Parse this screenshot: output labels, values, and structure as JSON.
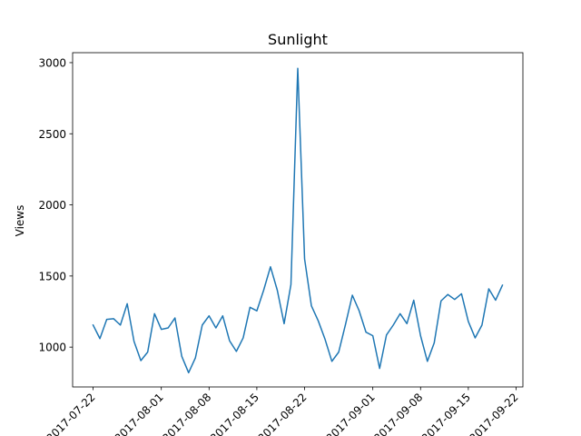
{
  "chart_data": {
    "type": "line",
    "title": "Sunlight",
    "xlabel": "",
    "ylabel": "Views",
    "grid": false,
    "legend": "none",
    "color": "#1f77b4",
    "xlim": [
      "2017-07-19",
      "2017-09-23"
    ],
    "ylim": [
      720,
      3070
    ],
    "x_ticks": [
      {
        "date": "2017-07-22",
        "label": "2017-07-22"
      },
      {
        "date": "2017-08-01",
        "label": "2017-08-01"
      },
      {
        "date": "2017-08-08",
        "label": "2017-08-08"
      },
      {
        "date": "2017-08-15",
        "label": "2017-08-15"
      },
      {
        "date": "2017-08-22",
        "label": "2017-08-22"
      },
      {
        "date": "2017-09-01",
        "label": "2017-09-01"
      },
      {
        "date": "2017-09-08",
        "label": "2017-09-08"
      },
      {
        "date": "2017-09-15",
        "label": "2017-09-15"
      },
      {
        "date": "2017-09-22",
        "label": "2017-09-22"
      }
    ],
    "y_ticks": [
      {
        "value": 1000,
        "label": "1000"
      },
      {
        "value": 1500,
        "label": "1500"
      },
      {
        "value": 2000,
        "label": "2000"
      },
      {
        "value": 2500,
        "label": "2500"
      },
      {
        "value": 3000,
        "label": "3000"
      }
    ],
    "series": [
      {
        "x": [
          "2017-07-22",
          "2017-07-23",
          "2017-07-24",
          "2017-07-25",
          "2017-07-26",
          "2017-07-27",
          "2017-07-28",
          "2017-07-29",
          "2017-07-30",
          "2017-07-31",
          "2017-08-01",
          "2017-08-02",
          "2017-08-03",
          "2017-08-04",
          "2017-08-05",
          "2017-08-06",
          "2017-08-07",
          "2017-08-08",
          "2017-08-09",
          "2017-08-10",
          "2017-08-11",
          "2017-08-12",
          "2017-08-13",
          "2017-08-14",
          "2017-08-15",
          "2017-08-16",
          "2017-08-17",
          "2017-08-18",
          "2017-08-19",
          "2017-08-20",
          "2017-08-21",
          "2017-08-22",
          "2017-08-23",
          "2017-08-24",
          "2017-08-25",
          "2017-08-26",
          "2017-08-27",
          "2017-08-28",
          "2017-08-29",
          "2017-08-30",
          "2017-08-31",
          "2017-09-01",
          "2017-09-02",
          "2017-09-03",
          "2017-09-04",
          "2017-09-05",
          "2017-09-06",
          "2017-09-07",
          "2017-09-08",
          "2017-09-09",
          "2017-09-10",
          "2017-09-11",
          "2017-09-12",
          "2017-09-13",
          "2017-09-14",
          "2017-09-15",
          "2017-09-16",
          "2017-09-17",
          "2017-09-18",
          "2017-09-19",
          "2017-09-20"
        ],
        "y": [
          1155,
          1060,
          1195,
          1200,
          1155,
          1305,
          1040,
          905,
          965,
          1235,
          1125,
          1135,
          1205,
          935,
          820,
          925,
          1155,
          1220,
          1135,
          1220,
          1045,
          970,
          1065,
          1280,
          1255,
          1400,
          1565,
          1400,
          1165,
          1440,
          2960,
          1620,
          1290,
          1185,
          1055,
          900,
          965,
          1160,
          1365,
          1255,
          1105,
          1080,
          850,
          1085,
          1155,
          1235,
          1165,
          1330,
          1080,
          900,
          1030,
          1325,
          1370,
          1335,
          1375,
          1180,
          1065,
          1155,
          1410,
          1330,
          1435
        ]
      }
    ]
  }
}
